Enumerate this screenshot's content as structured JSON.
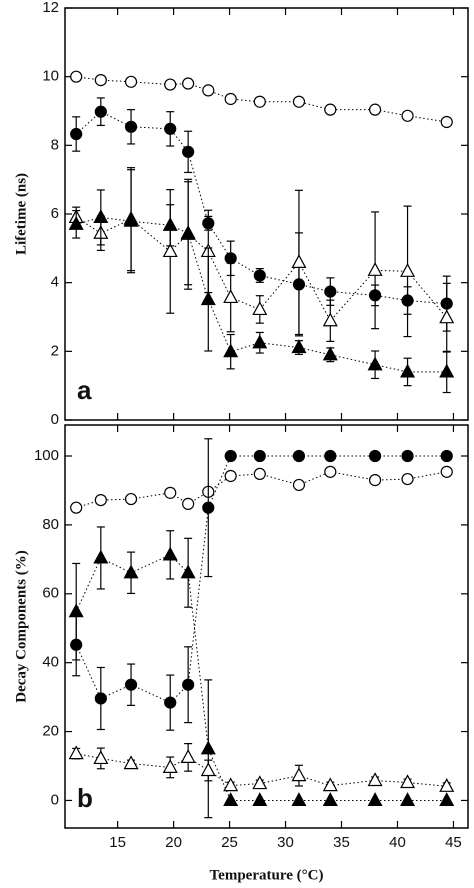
{
  "chart_data": [
    {
      "type": "scatter-line",
      "ylabel": "Lifetime (ns)",
      "panel_label": "a",
      "xlim": [
        10.3,
        46.3
      ],
      "xticks": [
        15,
        20,
        25,
        30,
        35,
        40,
        45
      ],
      "ylim": [
        0,
        12
      ],
      "yticks": [
        0,
        2,
        4,
        6,
        8,
        10,
        12
      ],
      "x": [
        11.3,
        13.5,
        16.2,
        19.7,
        21.3,
        23.1,
        25.1,
        27.7,
        31.2,
        34.0,
        38.0,
        40.9,
        44.4
      ],
      "series": [
        {
          "marker": "circle",
          "filled": false,
          "color": "#000000",
          "values": [
            10.0,
            9.9,
            9.85,
            9.77,
            9.8,
            9.6,
            9.35,
            9.27,
            9.27,
            9.04,
            9.04,
            8.86,
            8.68
          ]
        },
        {
          "marker": "circle",
          "filled": true,
          "color": "#000000",
          "values": [
            8.33,
            8.98,
            8.54,
            8.48,
            7.81,
            5.73,
            4.71,
            4.21,
            3.95,
            3.74,
            3.63,
            3.48,
            3.39
          ],
          "errors": [
            0.5,
            0.4,
            0.5,
            0.5,
            0.6,
            0.2,
            0.5,
            0.2,
            1.5,
            0.4,
            0.3,
            0.4,
            0.8
          ]
        },
        {
          "marker": "triangle",
          "filled": false,
          "color": "#000000",
          "values": [
            5.9,
            5.44,
            5.85,
            4.91,
            5.41,
            4.91,
            3.57,
            3.22,
            4.59,
            2.89,
            4.36,
            4.33,
            2.98
          ],
          "errors": [
            0.3,
            0.5,
            1.5,
            1.8,
            1.6,
            1.2,
            1.0,
            0.4,
            2.1,
            0.6,
            1.7,
            1.9,
            1.0
          ]
        },
        {
          "marker": "triangle",
          "filled": true,
          "color": "#000000",
          "values": [
            5.7,
            5.9,
            5.79,
            5.67,
            5.44,
            3.51,
            1.99,
            2.25,
            2.11,
            1.9,
            1.61,
            1.4,
            1.4
          ],
          "errors": [
            0.4,
            0.8,
            1.5,
            0.6,
            1.5,
            1.5,
            0.5,
            0.3,
            0.2,
            0.2,
            0.4,
            0.4,
            0.6
          ]
        }
      ]
    },
    {
      "type": "scatter-line",
      "ylabel": "Decay Components (%)",
      "xlabel": "Temperature (°C)",
      "panel_label": "b",
      "xlim": [
        10.3,
        46.3
      ],
      "xticks": [
        15,
        20,
        25,
        30,
        35,
        40,
        45
      ],
      "ylim": [
        -8,
        109
      ],
      "yticks": [
        0,
        20,
        40,
        60,
        80,
        100
      ],
      "x": [
        11.3,
        13.5,
        16.2,
        19.7,
        21.3,
        23.1,
        25.1,
        27.7,
        31.2,
        34.0,
        38.0,
        40.9,
        44.4
      ],
      "series": [
        {
          "marker": "circle",
          "filled": false,
          "color": "#000000",
          "values": [
            85,
            87.2,
            87.5,
            89.3,
            86.1,
            89.6,
            94.2,
            94.8,
            91.6,
            95.4,
            93,
            93.3,
            95.4
          ]
        },
        {
          "marker": "circle",
          "filled": true,
          "color": "#000000",
          "values": [
            45.2,
            29.6,
            33.6,
            28.4,
            33.6,
            85,
            100,
            100,
            100,
            100,
            100,
            100,
            100
          ],
          "errors": [
            9,
            9,
            6,
            8,
            11,
            20,
            0,
            0,
            0,
            0,
            0,
            0,
            0
          ]
        },
        {
          "marker": "triangle",
          "filled": true,
          "color": "#000000",
          "values": [
            54.8,
            70.4,
            66.1,
            71.3,
            66.1,
            15,
            0,
            0,
            0,
            0,
            0,
            0,
            0
          ],
          "errors": [
            14,
            9,
            6,
            7,
            10,
            20,
            0,
            0,
            0,
            0,
            0,
            0,
            0
          ]
        },
        {
          "marker": "triangle",
          "filled": false,
          "color": "#000000",
          "values": [
            13.6,
            12.2,
            10.7,
            9.6,
            12.5,
            8.7,
            4.3,
            4.9,
            7.2,
            4.3,
            5.8,
            5.2,
            4.1
          ],
          "errors": [
            1.5,
            3,
            1,
            3,
            4,
            3,
            1,
            1,
            3,
            1,
            1,
            1,
            1
          ]
        }
      ]
    }
  ]
}
